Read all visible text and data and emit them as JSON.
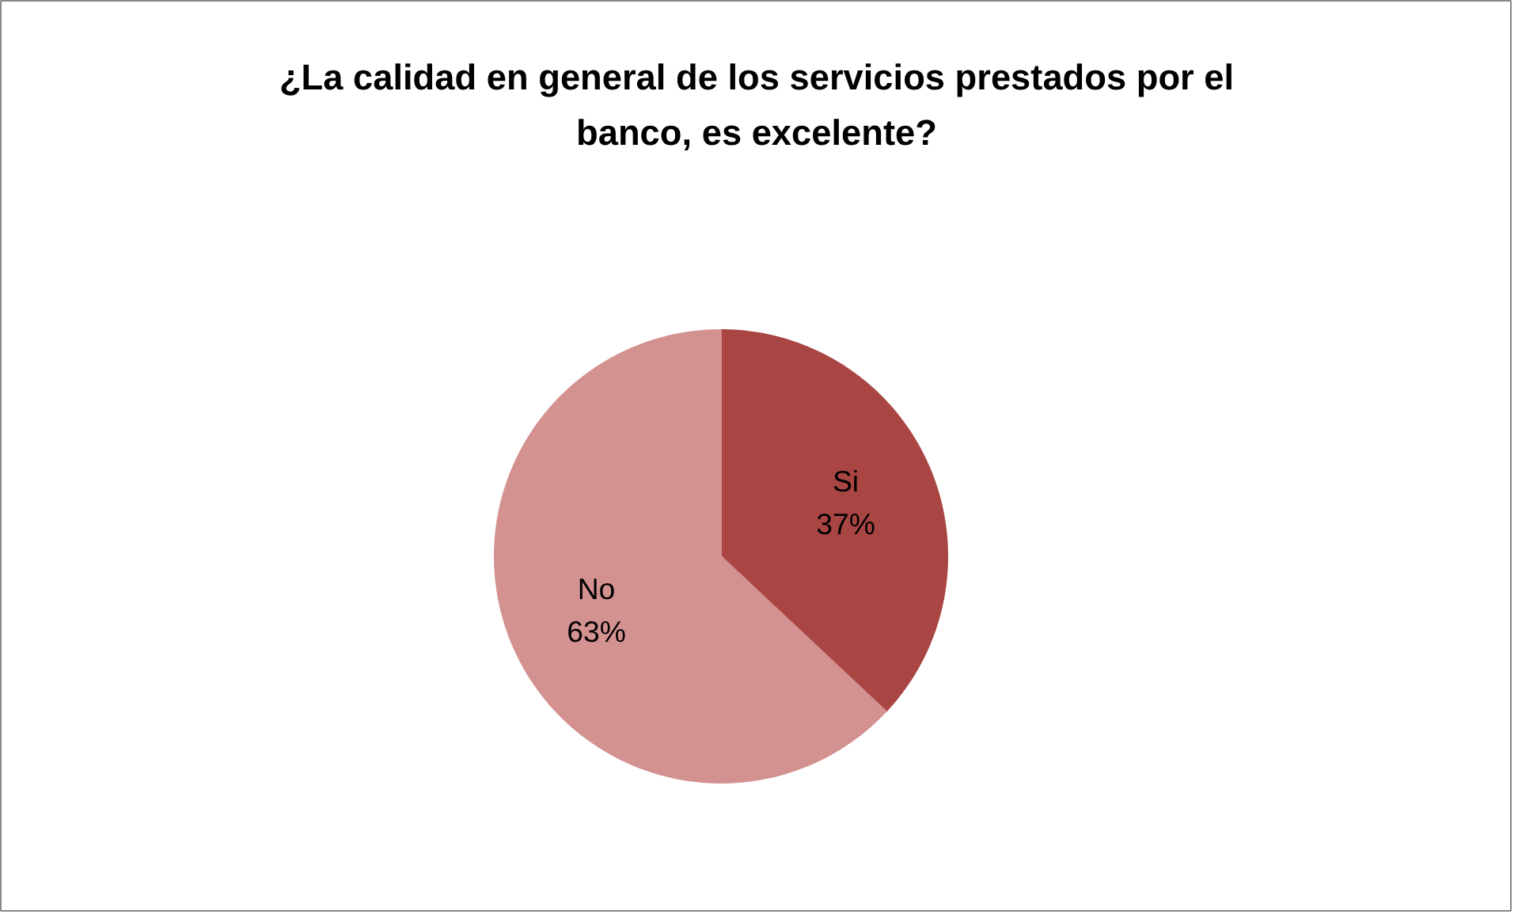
{
  "chart_data": {
    "type": "pie",
    "title": "¿La calidad en general de los servicios prestados por el banco, es excelente?",
    "categories": [
      "Si",
      "No"
    ],
    "values": [
      37,
      63
    ],
    "value_labels": [
      "37%",
      "63%"
    ],
    "colors": [
      "#a94644",
      "#d39190"
    ]
  }
}
